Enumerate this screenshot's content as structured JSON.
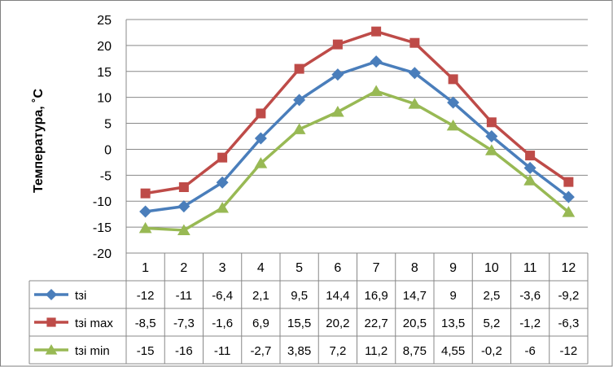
{
  "chart_data": {
    "type": "line",
    "title": "",
    "xlabel": "",
    "ylabel": "Температура, ˚С",
    "x": [
      "1",
      "2",
      "3",
      "4",
      "5",
      "6",
      "7",
      "8",
      "9",
      "10",
      "11",
      "12"
    ],
    "ylim": [
      -20,
      25
    ],
    "y_ticks": [
      "25",
      "20",
      "15",
      "10",
      "5",
      "0",
      "-5",
      "-10",
      "-15",
      "-20"
    ],
    "grid": true,
    "legend": "data-table",
    "series": [
      {
        "name": "tзі",
        "color": "#4a7ebb",
        "marker": "diamond",
        "values": [
          -12,
          -11,
          -6.4,
          2.1,
          9.5,
          14.4,
          16.9,
          14.7,
          9,
          2.5,
          -3.6,
          -9.2
        ],
        "labels": [
          "-12",
          "-11",
          "-6,4",
          "2,1",
          "9,5",
          "14,4",
          "16,9",
          "14,7",
          "9",
          "2,5",
          "-3,6",
          "-9,2"
        ]
      },
      {
        "name": "tзі max",
        "color": "#be4b48",
        "marker": "square",
        "values": [
          -8.5,
          -7.3,
          -1.6,
          6.9,
          15.5,
          20.2,
          22.7,
          20.5,
          13.5,
          5.2,
          -1.2,
          -6.3
        ],
        "labels": [
          "-8,5",
          "-7,3",
          "-1,6",
          "6,9",
          "15,5",
          "20,2",
          "22,7",
          "20,5",
          "13,5",
          "5,2",
          "-1,2",
          "-6,3"
        ]
      },
      {
        "name": "tзі min",
        "color": "#98b954",
        "marker": "triangle",
        "values": [
          -15.2,
          -15.6,
          -11.3,
          -2.7,
          3.85,
          7.2,
          11.2,
          8.75,
          4.55,
          -0.2,
          -6,
          -12.1
        ],
        "labels": [
          "-15",
          "-16",
          "-11",
          "-2,7",
          "3,85",
          "7,2",
          "11,2",
          "8,75",
          "4,55",
          "-0,2",
          "-6",
          "-12"
        ]
      }
    ]
  }
}
